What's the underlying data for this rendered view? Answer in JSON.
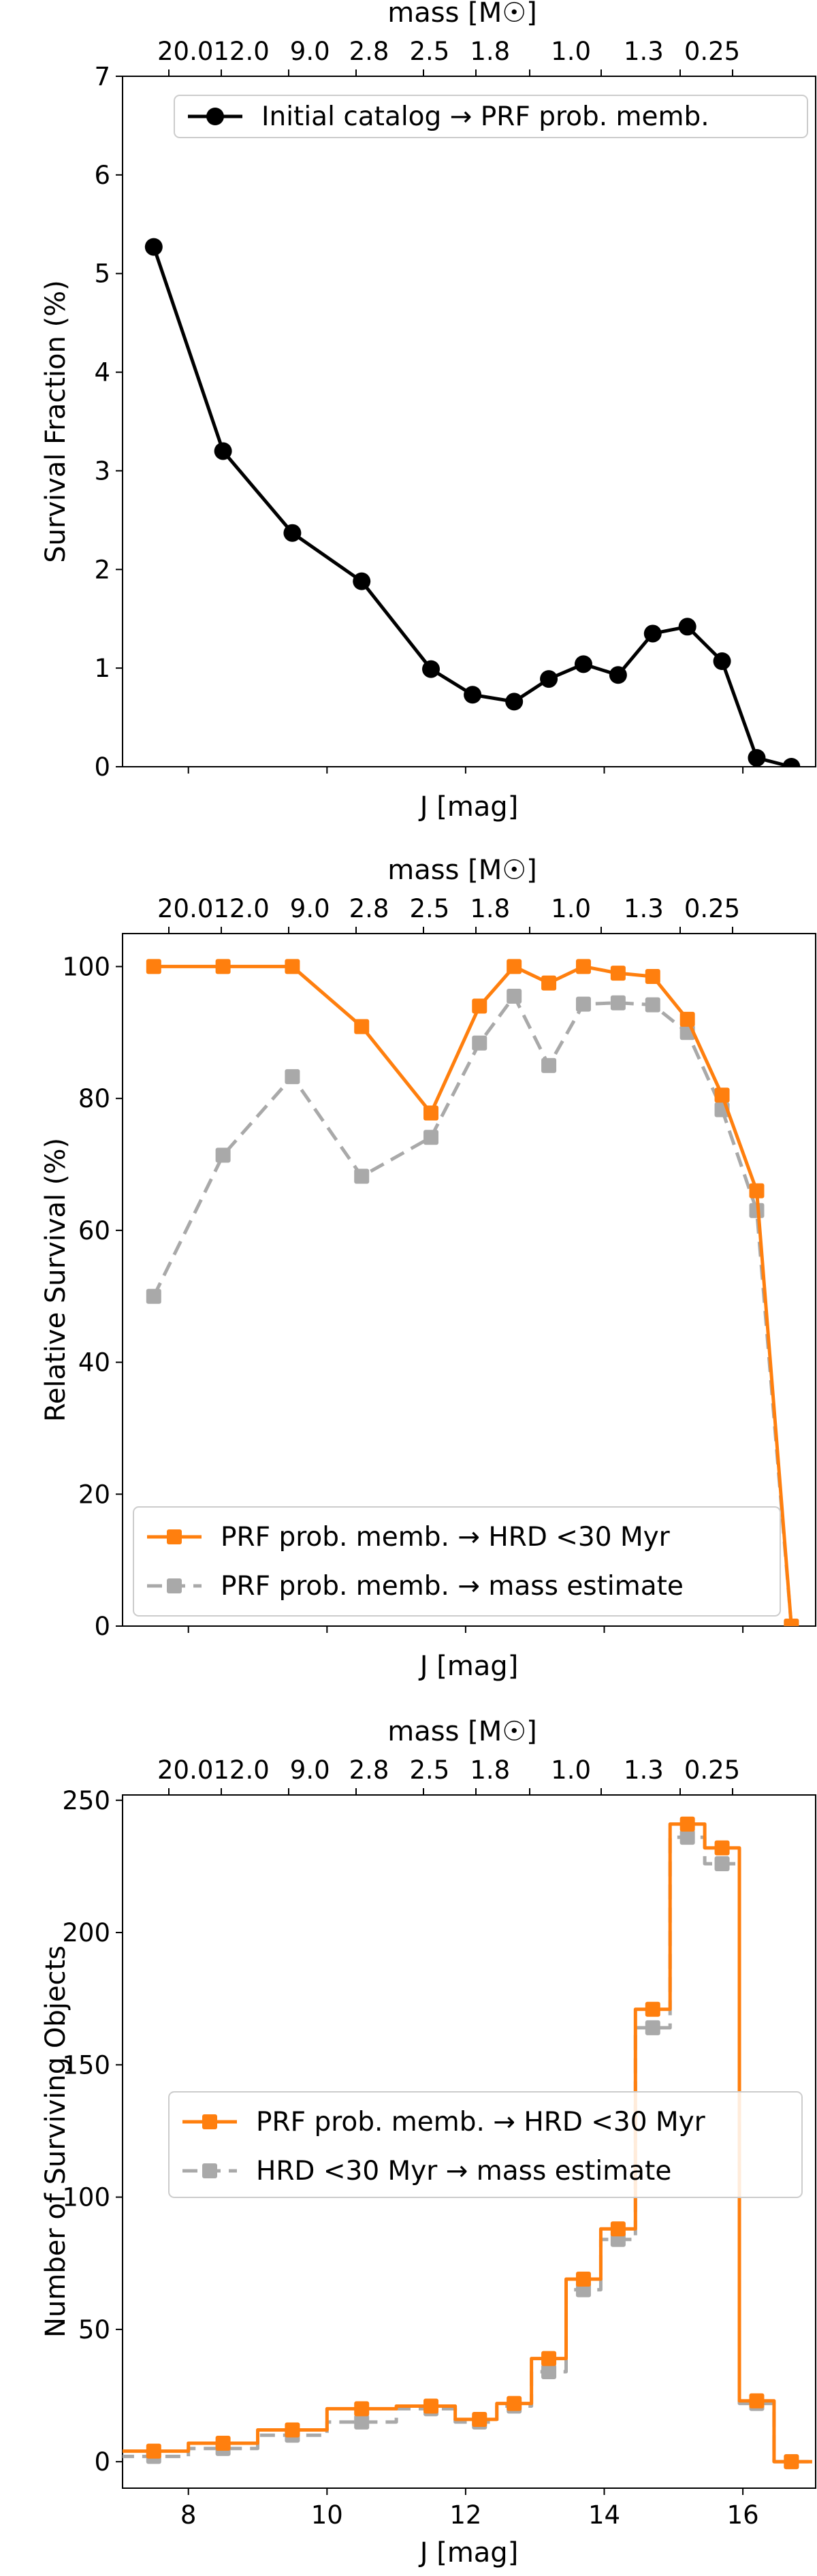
{
  "chart_data": [
    {
      "type": "line",
      "xlabel": "J [mag]",
      "ylabel": "Survival Fraction (%)",
      "top_axis_label": "mass [M☉]",
      "top_tick_labels": [
        "20.0",
        "12.0",
        "9.0",
        "2.8",
        "2.5",
        "1.8",
        "1.0",
        "1.3",
        "0.25"
      ],
      "xlim": [
        7.05,
        17.05
      ],
      "ylim": [
        0,
        7
      ],
      "yticks": [
        0,
        1,
        2,
        3,
        4,
        5,
        6,
        7
      ],
      "show_xtick_labels": false,
      "legend_loc": "upper right",
      "series": [
        {
          "name": "Initial catalog → PRF prob. memb.",
          "color": "#000000",
          "linestyle": "solid",
          "marker": "circle",
          "x": [
            7.5,
            8.5,
            9.5,
            10.5,
            11.5,
            12.1,
            12.7,
            13.2,
            13.7,
            14.2,
            14.7,
            15.2,
            15.7,
            16.2,
            16.7
          ],
          "y": [
            5.27,
            3.2,
            2.37,
            1.88,
            0.99,
            0.73,
            0.66,
            0.89,
            1.04,
            0.93,
            1.35,
            1.42,
            1.07,
            0.09,
            0.0
          ]
        }
      ]
    },
    {
      "type": "line",
      "xlabel": "J [mag]",
      "ylabel": "Relative Survival (%)",
      "top_axis_label": "mass [M☉]",
      "top_tick_labels": [
        "20.0",
        "12.0",
        "9.0",
        "2.8",
        "2.5",
        "1.8",
        "1.0",
        "1.3",
        "0.25"
      ],
      "xlim": [
        7.05,
        17.05
      ],
      "ylim": [
        0,
        105
      ],
      "yticks": [
        0,
        20,
        40,
        60,
        80,
        100
      ],
      "show_xtick_labels": false,
      "legend_loc": "lower left",
      "series": [
        {
          "name": "PRF prob. memb. → HRD <30 Myr",
          "color": "#ff7f0e",
          "linestyle": "solid",
          "marker": "square",
          "x": [
            7.5,
            8.5,
            9.5,
            10.5,
            11.5,
            12.2,
            12.7,
            13.2,
            13.7,
            14.2,
            14.7,
            15.2,
            15.7,
            16.2,
            16.7
          ],
          "y": [
            100,
            100,
            100,
            90.9,
            77.8,
            94,
            100,
            97.5,
            100,
            99,
            98.5,
            92,
            80.5,
            66,
            0
          ]
        },
        {
          "name": "PRF prob. memb. → mass estimate",
          "color": "#a9a9a9",
          "linestyle": "dashed",
          "marker": "square",
          "x": [
            7.5,
            8.5,
            9.5,
            10.5,
            11.5,
            12.2,
            12.7,
            13.2,
            13.7,
            14.2,
            14.7,
            15.2,
            15.7,
            16.2,
            16.7
          ],
          "y": [
            50,
            71.4,
            83.3,
            68.2,
            74.1,
            88.4,
            95.5,
            85,
            94.3,
            94.5,
            94.2,
            90,
            78.3,
            63,
            0
          ]
        }
      ]
    },
    {
      "type": "step",
      "xlabel": "J [mag]",
      "ylabel": "Number of Surviving Objects",
      "top_axis_label": "mass [M☉]",
      "top_tick_labels": [
        "20.0",
        "12.0",
        "9.0",
        "2.8",
        "2.5",
        "1.8",
        "1.0",
        "1.3",
        "0.25"
      ],
      "xlim": [
        7.05,
        17.05
      ],
      "ylim": [
        -10,
        252
      ],
      "yticks": [
        0,
        50,
        100,
        150,
        200,
        250
      ],
      "xticks": [
        8,
        10,
        12,
        14,
        16
      ],
      "show_xtick_labels": true,
      "legend_loc": "center left",
      "series": [
        {
          "name": "PRF prob. memb. → HRD <30 Myr",
          "color": "#ff7f0e",
          "linestyle": "solid",
          "marker": "square",
          "x": [
            7.5,
            8.5,
            9.5,
            10.5,
            11.5,
            12.2,
            12.7,
            13.2,
            13.7,
            14.2,
            14.7,
            15.2,
            15.7,
            16.2,
            16.7
          ],
          "y": [
            4,
            7,
            12,
            20,
            21,
            16,
            22,
            39,
            69,
            88,
            171,
            241,
            232,
            23,
            0
          ]
        },
        {
          "name": "HRD <30 Myr → mass estimate",
          "color": "#a9a9a9",
          "linestyle": "dashed",
          "marker": "square",
          "x": [
            7.5,
            8.5,
            9.5,
            10.5,
            11.5,
            12.2,
            12.7,
            13.2,
            13.7,
            14.2,
            14.7,
            15.2,
            15.7,
            16.2,
            16.7
          ],
          "y": [
            2,
            5,
            10,
            15,
            20,
            15,
            21,
            34,
            65,
            84,
            164,
            236,
            226,
            22,
            0
          ]
        }
      ]
    }
  ]
}
